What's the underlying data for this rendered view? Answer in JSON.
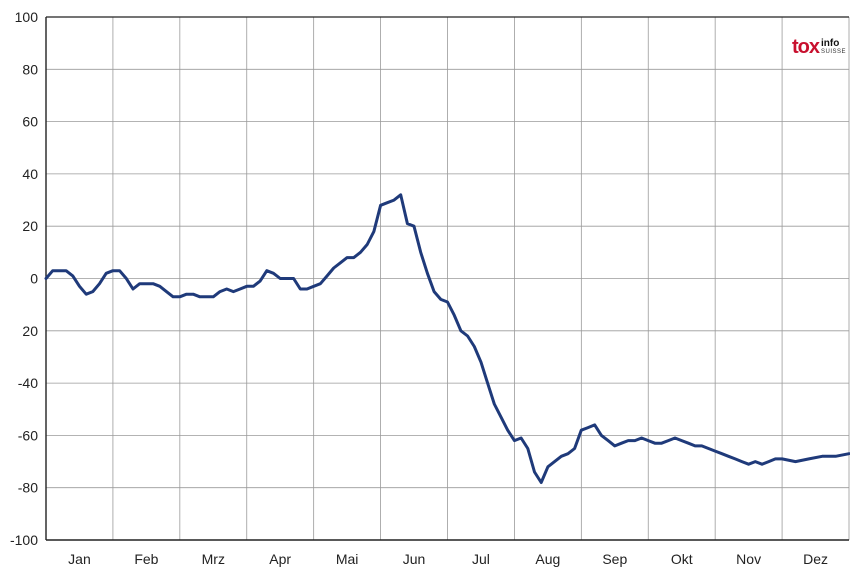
{
  "chart_data": {
    "type": "line",
    "title": "",
    "xlabel": "",
    "ylabel": "",
    "ylim": [
      -100,
      100
    ],
    "xlim": [
      0,
      12
    ],
    "yticks": [
      100,
      80,
      60,
      40,
      20,
      0,
      20,
      -40,
      -60,
      -80,
      -100
    ],
    "months": [
      "Jan",
      "Feb",
      "Mrz",
      "Apr",
      "Mai",
      "Jun",
      "Jul",
      "Aug",
      "Sep",
      "Okt",
      "Nov",
      "Dez"
    ],
    "grid": true,
    "line_color": "#1f3a7a",
    "series": [
      {
        "name": "",
        "x": [
          0,
          0.1,
          0.2,
          0.3,
          0.4,
          0.5,
          0.6,
          0.7,
          0.8,
          0.9,
          1.0,
          1.1,
          1.2,
          1.3,
          1.4,
          1.5,
          1.6,
          1.7,
          1.8,
          1.9,
          2.0,
          2.1,
          2.2,
          2.3,
          2.4,
          2.5,
          2.6,
          2.7,
          2.8,
          2.9,
          3.0,
          3.1,
          3.2,
          3.3,
          3.4,
          3.5,
          3.6,
          3.7,
          3.8,
          3.9,
          4.0,
          4.1,
          4.2,
          4.3,
          4.4,
          4.5,
          4.6,
          4.7,
          4.8,
          4.9,
          5.0,
          5.1,
          5.2,
          5.3,
          5.4,
          5.5,
          5.6,
          5.7,
          5.8,
          5.9,
          6.0,
          6.1,
          6.2,
          6.3,
          6.4,
          6.5,
          6.6,
          6.7,
          6.8,
          6.9,
          7.0,
          7.1,
          7.2,
          7.3,
          7.4,
          7.5,
          7.6,
          7.7,
          7.8,
          7.9,
          8.0,
          8.1,
          8.2,
          8.3,
          8.4,
          8.5,
          8.6,
          8.7,
          8.8,
          8.9,
          9.0,
          9.1,
          9.2,
          9.3,
          9.4,
          9.5,
          9.6,
          9.7,
          9.8,
          9.9,
          10.0,
          10.1,
          10.2,
          10.3,
          10.4,
          10.5,
          10.6,
          10.7,
          10.8,
          10.9,
          11.0,
          11.2,
          11.4,
          11.6,
          11.8,
          12.0
        ],
        "values": [
          0,
          3,
          3,
          3,
          1,
          -3,
          -6,
          -5,
          -2,
          2,
          3,
          3,
          0,
          -4,
          -2,
          -2,
          -2,
          -3,
          -5,
          -7,
          -7,
          -6,
          -6,
          -7,
          -7,
          -7,
          -5,
          -4,
          -5,
          -4,
          -3,
          -3,
          -1,
          3,
          2,
          0,
          0,
          0,
          -4,
          -4,
          -3,
          -2,
          1,
          4,
          6,
          8,
          8,
          10,
          13,
          18,
          28,
          29,
          30,
          32,
          21,
          20,
          10,
          2,
          -5,
          -8,
          -9,
          -14,
          -20,
          -22,
          -26,
          -32,
          -40,
          -48,
          -53,
          -58,
          -62,
          -61,
          -65,
          -74,
          -78,
          -72,
          -70,
          -68,
          -67,
          -65,
          -58,
          -57,
          -56,
          -60,
          -62,
          -64,
          -63,
          -62,
          -62,
          -61,
          -62,
          -63,
          -63,
          -62,
          -61,
          -62,
          -63,
          -64,
          -64,
          -65,
          -66,
          -67,
          -68,
          -69,
          -70,
          -71,
          -70,
          -71,
          -70,
          -69,
          -69,
          -70,
          -69,
          -68,
          -68,
          -67
        ]
      }
    ]
  },
  "logo": {
    "main": "to",
    "mark": "x",
    "info": "info",
    "suisse": "SUISSE"
  }
}
